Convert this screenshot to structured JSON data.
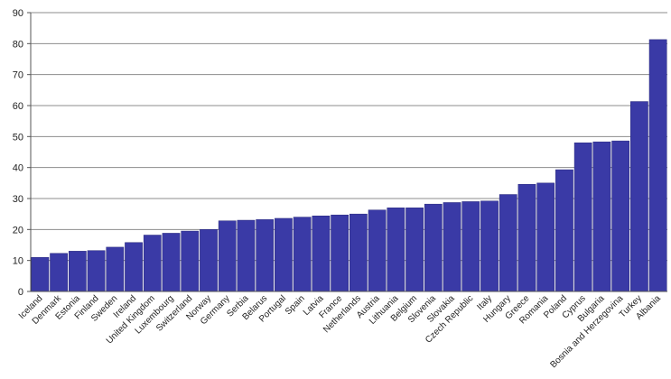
{
  "chart_data": {
    "type": "bar",
    "title": "",
    "xlabel": "",
    "ylabel": "",
    "ylim": [
      0,
      90
    ],
    "yticks": [
      0,
      10,
      20,
      30,
      40,
      50,
      60,
      70,
      80,
      90
    ],
    "grid": true,
    "legend": "none",
    "colors": {
      "bar": "#3a3aa6",
      "bar_edge": "#26267a",
      "grid": "#8c8c8c",
      "axis": "#555555"
    },
    "categories": [
      "Iceland",
      "Denmark",
      "Estonia",
      "Finland",
      "Sweden",
      "Ireland",
      "United Kingdom",
      "Luxembourg",
      "Switzerland",
      "Norway",
      "Germany",
      "Serbia",
      "Belarus",
      "Portugal",
      "Spain",
      "Latvia",
      "France",
      "Netherlands",
      "Austria",
      "Lithuania",
      "Belgium",
      "Slovenia",
      "Slovakia",
      "Czech Republic",
      "Italy",
      "Hungary",
      "Greece",
      "Romania",
      "Poland",
      "Cyprus",
      "Bulgaria",
      "Bosnia and Herzegovina",
      "Turkey",
      "Albania"
    ],
    "values": [
      11,
      12.3,
      13,
      13.2,
      14.3,
      15.8,
      18.2,
      18.8,
      19.5,
      20,
      22.8,
      23,
      23.2,
      23.6,
      24,
      24.4,
      24.7,
      25,
      26.3,
      27,
      27,
      28.2,
      28.7,
      29,
      29.2,
      31.3,
      34.6,
      35,
      39.3,
      48,
      48.3,
      48.6,
      61.3,
      81.3
    ]
  }
}
